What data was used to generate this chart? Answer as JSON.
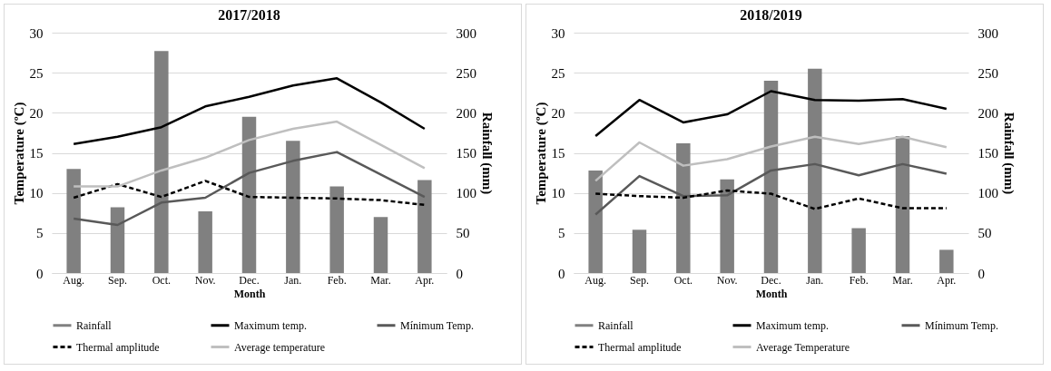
{
  "chart_data": [
    {
      "type": "line",
      "title": "2017/2018",
      "xlabel": "Month",
      "ylabel": "Temperature (ºC)",
      "y2label": "Rainfall (mm)",
      "categories": [
        "Aug.",
        "Sep.",
        "Oct.",
        "Nov.",
        "Dec.",
        "Jan.",
        "Feb.",
        "Mar.",
        "Apr."
      ],
      "series": [
        {
          "name": "Rainfall",
          "type": "bar",
          "axis": "y2",
          "color": "#808080",
          "values": [
            130,
            82,
            277,
            77,
            195,
            165,
            108,
            70,
            116
          ]
        },
        {
          "name": "Maximum temp.",
          "color": "#000000",
          "line_style": "solid",
          "values": [
            16.1,
            17.0,
            18.2,
            20.8,
            22.0,
            23.4,
            24.3,
            21.3,
            18.0
          ]
        },
        {
          "name": "Mínimum Temp.",
          "color": "#595959",
          "line_style": "solid",
          "values": [
            6.8,
            6.0,
            8.8,
            9.4,
            12.5,
            14.0,
            15.1,
            12.3,
            9.5
          ]
        },
        {
          "name": "Thermal amplitude",
          "color": "#000000",
          "line_style": "dashed",
          "values": [
            9.4,
            11.1,
            9.5,
            11.5,
            9.5,
            9.4,
            9.3,
            9.1,
            8.5
          ]
        },
        {
          "name": "Average temperature",
          "color": "#bfbfbf",
          "line_style": "solid",
          "values": [
            10.8,
            10.8,
            12.8,
            14.4,
            16.6,
            18.0,
            18.9,
            16.0,
            13.1
          ]
        }
      ],
      "ylim": [
        0,
        30
      ],
      "yticks": [
        0,
        5,
        10,
        15,
        20,
        25,
        30
      ],
      "y2lim": [
        0,
        300
      ],
      "y2ticks": [
        0,
        50,
        100,
        150,
        200,
        250,
        300
      ],
      "grid": "y",
      "legend": "bottom"
    },
    {
      "type": "line",
      "title": "2018/2019",
      "xlabel": "Month",
      "ylabel": "Temperature (ºC)",
      "y2label": "Rainfall (mm)",
      "categories": [
        "Aug.",
        "Sep.",
        "Oct.",
        "Nov.",
        "Dec.",
        "Jan.",
        "Feb.",
        "Mar.",
        "Apr."
      ],
      "series": [
        {
          "name": "Rainfall",
          "type": "bar",
          "axis": "y2",
          "color": "#808080",
          "values": [
            128,
            54,
            162,
            117,
            240,
            255,
            56,
            171,
            29
          ]
        },
        {
          "name": "Maximum temp.",
          "color": "#000000",
          "line_style": "solid",
          "values": [
            17.1,
            21.6,
            18.8,
            19.8,
            22.7,
            21.6,
            21.5,
            21.7,
            20.5
          ]
        },
        {
          "name": "Mínimum Temp.",
          "color": "#595959",
          "line_style": "solid",
          "values": [
            7.3,
            12.1,
            9.6,
            9.7,
            12.8,
            13.6,
            12.2,
            13.6,
            12.4
          ]
        },
        {
          "name": "Thermal amplitude",
          "color": "#000000",
          "line_style": "dashed",
          "values": [
            9.9,
            9.6,
            9.4,
            10.3,
            9.9,
            8.0,
            9.3,
            8.1,
            8.1
          ]
        },
        {
          "name": "Average Temperature",
          "color": "#bfbfbf",
          "line_style": "solid",
          "values": [
            11.5,
            16.3,
            13.4,
            14.2,
            15.8,
            17.0,
            16.1,
            17.0,
            15.7
          ]
        }
      ],
      "ylim": [
        0,
        30
      ],
      "yticks": [
        0,
        5,
        10,
        15,
        20,
        25,
        30
      ],
      "y2lim": [
        0,
        300
      ],
      "y2ticks": [
        0,
        50,
        100,
        150,
        200,
        250,
        300
      ],
      "grid": "y",
      "legend": "bottom"
    }
  ]
}
